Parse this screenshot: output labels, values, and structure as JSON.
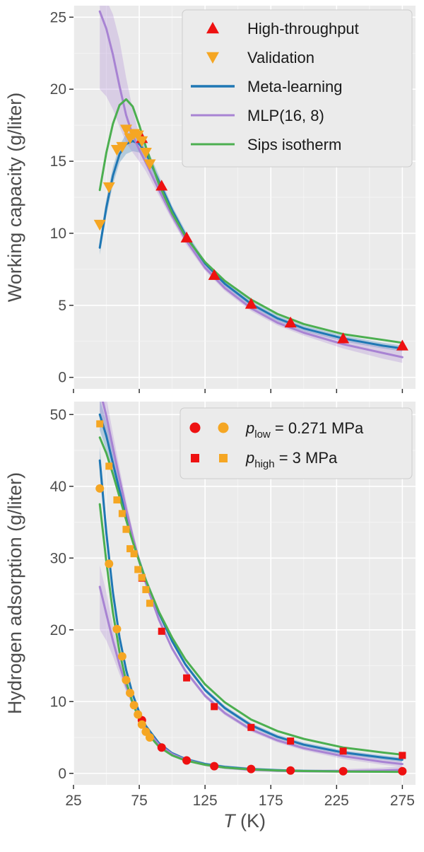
{
  "chart_data": [
    {
      "type": "line",
      "panel": "top",
      "title": "",
      "xlabel": "",
      "ylabel": "Working capacity (g/liter)",
      "xlim": [
        25,
        285
      ],
      "ylim": [
        -0.8,
        25.8
      ],
      "xticks": [
        25,
        75,
        125,
        175,
        225,
        275
      ],
      "yticks": [
        0,
        5,
        10,
        15,
        20,
        25
      ],
      "ytick_labels": [
        "0",
        "5",
        "10",
        "15",
        "20",
        "25"
      ],
      "grid": true,
      "legend_position": "top-right",
      "legend": [
        {
          "label": "High-throughput",
          "marker": "triangle-up",
          "color": "#ee1111"
        },
        {
          "label": "Validation",
          "marker": "triangle-down",
          "color": "#f5a623"
        },
        {
          "label": "Meta-learning",
          "marker": "line",
          "color": "#1f77b4"
        },
        {
          "label": "MLP(16, 8)",
          "marker": "line",
          "color": "#a883d3"
        },
        {
          "label": "Sips isotherm",
          "marker": "line",
          "color": "#4caf50"
        }
      ],
      "series": [
        {
          "name": "High-throughput",
          "kind": "scatter",
          "marker": "triangle-up",
          "color": "#ee1111",
          "x": [
            77,
            92,
            111,
            132,
            160,
            190,
            230,
            275
          ],
          "y": [
            16.6,
            13.3,
            9.7,
            7.1,
            5.1,
            3.8,
            2.7,
            2.2
          ]
        },
        {
          "name": "Validation",
          "kind": "scatter",
          "marker": "triangle-down",
          "color": "#f5a623",
          "x": [
            45,
            52,
            58,
            62,
            65,
            68,
            71,
            74,
            77,
            80,
            83
          ],
          "y": [
            10.6,
            13.2,
            15.8,
            16.0,
            17.2,
            16.6,
            16.9,
            16.8,
            16.4,
            15.6,
            14.8
          ]
        },
        {
          "name": "Meta-learning",
          "kind": "line",
          "color": "#1f77b4",
          "x": [
            45,
            50,
            55,
            60,
            65,
            70,
            75,
            80,
            90,
            100,
            110,
            125,
            140,
            160,
            180,
            200,
            230,
            260,
            275
          ],
          "y": [
            9.0,
            11.8,
            14.0,
            15.5,
            16.2,
            16.4,
            16.2,
            15.6,
            13.6,
            11.6,
            9.9,
            7.9,
            6.5,
            5.1,
            4.1,
            3.4,
            2.7,
            2.2,
            2.0
          ],
          "band_lower": [
            8.5,
            11.2,
            13.4,
            14.9,
            15.5,
            15.7,
            15.6,
            15.1,
            13.2,
            11.3,
            9.6,
            7.7,
            6.3,
            4.9,
            3.9,
            3.2,
            2.5,
            2.0,
            1.8
          ],
          "band_upper": [
            9.5,
            12.4,
            14.6,
            16.1,
            16.9,
            17.1,
            16.8,
            16.1,
            14.0,
            11.9,
            10.2,
            8.1,
            6.7,
            5.3,
            4.3,
            3.6,
            2.9,
            2.4,
            2.2
          ]
        },
        {
          "name": "MLP(16, 8)",
          "kind": "line",
          "color": "#a883d3",
          "x": [
            45,
            50,
            55,
            60,
            65,
            70,
            75,
            80,
            90,
            100,
            110,
            125,
            140,
            160,
            180,
            200,
            230,
            260,
            275
          ],
          "y": [
            25.4,
            24.2,
            22.4,
            20.2,
            18.2,
            16.8,
            15.8,
            14.9,
            13.0,
            11.2,
            9.6,
            7.6,
            6.2,
            4.8,
            3.8,
            3.1,
            2.3,
            1.7,
            1.4
          ],
          "band_lower": [
            20.0,
            19.5,
            18.6,
            17.4,
            16.3,
            15.6,
            15.0,
            14.3,
            12.6,
            10.9,
            9.3,
            7.4,
            6.0,
            4.6,
            3.6,
            2.9,
            2.0,
            1.3,
            1.0
          ],
          "band_upper": [
            26.8,
            26.2,
            25.2,
            23.4,
            20.8,
            18.6,
            16.8,
            15.6,
            13.4,
            11.5,
            9.9,
            7.8,
            6.4,
            5.0,
            4.0,
            3.3,
            2.6,
            2.1,
            1.9
          ]
        },
        {
          "name": "Sips isotherm",
          "kind": "line",
          "color": "#4caf50",
          "x": [
            45,
            50,
            55,
            60,
            65,
            70,
            75,
            80,
            90,
            100,
            110,
            125,
            140,
            160,
            180,
            200,
            230,
            260,
            275
          ],
          "y": [
            13.0,
            15.6,
            17.6,
            18.9,
            19.3,
            18.8,
            17.5,
            16.0,
            13.4,
            11.4,
            9.8,
            8.0,
            6.7,
            5.4,
            4.4,
            3.7,
            3.0,
            2.6,
            2.4
          ]
        }
      ]
    },
    {
      "type": "line",
      "panel": "bottom",
      "title": "",
      "xlabel": "T (K)",
      "xlabel_italic": "T",
      "xlabel_rest": " (K)",
      "ylabel": "Hydrogen adsorption (g/liter)",
      "xlim": [
        25,
        285
      ],
      "ylim": [
        -1.6,
        51.8
      ],
      "xticks": [
        25,
        75,
        125,
        175,
        225,
        275
      ],
      "xtick_labels": [
        "25",
        "75",
        "125",
        "175",
        "225",
        "275"
      ],
      "yticks": [
        0,
        10,
        20,
        30,
        40,
        50
      ],
      "ytick_labels": [
        "0",
        "10",
        "20",
        "30",
        "40",
        "50"
      ],
      "grid": true,
      "legend_position": "top-right",
      "legend": [
        {
          "symbol": "p",
          "sub": "low",
          "rest": " = 0.271 MPa",
          "marker": "circle",
          "colors": [
            "#ee1111",
            "#f5a623"
          ]
        },
        {
          "symbol": "p",
          "sub": "high",
          "rest": " = 3 MPa",
          "marker": "square",
          "colors": [
            "#ee1111",
            "#f5a623"
          ]
        }
      ],
      "series": [
        {
          "name": "p_low high-throughput",
          "kind": "scatter",
          "marker": "circle",
          "color": "#ee1111",
          "x": [
            77,
            92,
            111,
            132,
            160,
            190,
            230,
            275
          ],
          "y": [
            7.4,
            3.6,
            1.8,
            1.0,
            0.6,
            0.4,
            0.3,
            0.3
          ]
        },
        {
          "name": "p_low validation",
          "kind": "scatter",
          "marker": "circle",
          "color": "#f5a623",
          "x": [
            45,
            52,
            58,
            62,
            65,
            68,
            71,
            74,
            77,
            80,
            83
          ],
          "y": [
            39.7,
            29.2,
            20.1,
            16.3,
            13.0,
            11.2,
            9.5,
            8.2,
            6.8,
            5.8,
            5.0
          ]
        },
        {
          "name": "p_high high-throughput",
          "kind": "scatter",
          "marker": "square",
          "color": "#ee1111",
          "x": [
            77,
            92,
            111,
            132,
            160,
            190,
            230,
            275
          ],
          "y": [
            27.2,
            19.8,
            13.3,
            9.3,
            6.4,
            4.5,
            3.1,
            2.5
          ]
        },
        {
          "name": "p_high validation",
          "kind": "scatter",
          "marker": "square",
          "color": "#f5a623",
          "x": [
            45,
            52,
            58,
            62,
            65,
            68,
            71,
            74,
            77,
            80,
            83
          ],
          "y": [
            48.7,
            42.8,
            38.1,
            36.2,
            34.0,
            31.3,
            30.6,
            28.4,
            27.3,
            25.6,
            23.7
          ]
        },
        {
          "name": "Meta-learning p_high",
          "kind": "line",
          "color": "#1f77b4",
          "x": [
            45,
            50,
            55,
            60,
            65,
            70,
            75,
            80,
            90,
            100,
            110,
            125,
            140,
            160,
            180,
            200,
            230,
            260,
            275
          ],
          "y": [
            50.0,
            47.0,
            43.2,
            39.4,
            35.9,
            32.6,
            29.6,
            26.9,
            22.3,
            18.4,
            15.2,
            11.6,
            9.1,
            6.7,
            5.1,
            4.0,
            2.9,
            2.2,
            1.9
          ],
          "band_lower": [
            47.8,
            45.0,
            41.6,
            38.1,
            34.9,
            31.8,
            29.0,
            26.4,
            21.9,
            18.1,
            14.9,
            11.3,
            8.8,
            6.4,
            4.8,
            3.7,
            2.6,
            1.9,
            1.6
          ],
          "band_upper": [
            52.2,
            49.0,
            44.8,
            40.7,
            36.9,
            33.4,
            30.2,
            27.4,
            22.7,
            18.7,
            15.5,
            11.9,
            9.4,
            7.0,
            5.4,
            4.3,
            3.2,
            2.5,
            2.2
          ]
        },
        {
          "name": "Meta-learning p_low",
          "kind": "line",
          "color": "#1f77b4",
          "x": [
            45,
            50,
            55,
            60,
            65,
            70,
            75,
            80,
            90,
            100,
            110,
            125,
            140,
            160,
            180,
            200,
            230,
            260,
            275
          ],
          "y": [
            43.6,
            33.5,
            25.2,
            18.9,
            14.4,
            11.0,
            8.5,
            6.6,
            4.2,
            2.8,
            2.0,
            1.3,
            0.9,
            0.6,
            0.45,
            0.35,
            0.3,
            0.25,
            0.25
          ],
          "band_lower": [
            41.6,
            32.0,
            24.1,
            18.1,
            13.8,
            10.5,
            8.1,
            6.3,
            4.0,
            2.6,
            1.8,
            1.1,
            0.7,
            0.4,
            0.3,
            0.2,
            0.15,
            0.1,
            0.1
          ],
          "band_upper": [
            45.6,
            35.0,
            26.3,
            19.7,
            15.0,
            11.5,
            8.9,
            6.9,
            4.4,
            3.0,
            2.2,
            1.5,
            1.1,
            0.8,
            0.6,
            0.5,
            0.45,
            0.4,
            0.4
          ]
        },
        {
          "name": "MLP p_high",
          "kind": "line",
          "color": "#a883d3",
          "x": [
            45,
            50,
            55,
            60,
            65,
            70,
            75,
            80,
            90,
            100,
            110,
            125,
            140,
            160,
            180,
            200,
            230,
            260,
            275
          ],
          "y": [
            53.5,
            49.8,
            45.4,
            41.0,
            36.8,
            33.0,
            29.5,
            26.5,
            21.4,
            17.4,
            14.3,
            10.8,
            8.4,
            6.1,
            4.6,
            3.5,
            2.4,
            1.6,
            1.3
          ],
          "band_lower": [
            50.5,
            47.3,
            43.4,
            39.5,
            35.6,
            32.1,
            28.9,
            26.0,
            21.0,
            17.1,
            14.0,
            10.5,
            8.1,
            5.8,
            4.3,
            3.2,
            2.0,
            1.2,
            0.9
          ],
          "band_upper": [
            56.5,
            52.3,
            47.4,
            42.5,
            38.0,
            33.9,
            30.1,
            27.0,
            21.8,
            17.7,
            14.6,
            11.1,
            8.7,
            6.4,
            4.9,
            3.8,
            2.8,
            2.0,
            1.7
          ]
        },
        {
          "name": "MLP p_low",
          "kind": "line",
          "color": "#a883d3",
          "x": [
            45,
            50,
            55,
            60,
            65,
            70,
            75,
            80,
            90,
            100,
            110,
            125,
            140,
            160,
            180,
            200,
            230,
            260,
            275
          ],
          "y": [
            26.0,
            22.2,
            18.5,
            15.1,
            12.2,
            9.8,
            7.8,
            6.2,
            4.0,
            2.7,
            1.9,
            1.2,
            0.8,
            0.5,
            0.35,
            0.3,
            0.3,
            0.4,
            0.5
          ],
          "band_lower": [
            20.0,
            18.5,
            16.3,
            13.8,
            11.4,
            9.3,
            7.4,
            5.9,
            3.8,
            2.5,
            1.7,
            1.0,
            0.6,
            0.3,
            0.2,
            0.1,
            0.05,
            0.05,
            0.05
          ],
          "band_upper": [
            29.0,
            25.2,
            20.5,
            16.4,
            13.0,
            10.3,
            8.2,
            6.5,
            4.2,
            2.9,
            2.1,
            1.4,
            1.0,
            0.7,
            0.5,
            0.5,
            0.6,
            0.8,
            1.0
          ]
        },
        {
          "name": "Sips p_high",
          "kind": "line",
          "color": "#4caf50",
          "x": [
            45,
            50,
            55,
            60,
            65,
            70,
            75,
            80,
            90,
            100,
            110,
            125,
            140,
            160,
            180,
            200,
            230,
            260,
            275
          ],
          "y": [
            46.8,
            44.6,
            41.7,
            38.5,
            35.3,
            32.3,
            29.5,
            26.9,
            22.5,
            18.9,
            15.9,
            12.4,
            9.9,
            7.5,
            5.9,
            4.8,
            3.6,
            2.9,
            2.6
          ]
        },
        {
          "name": "Sips p_low",
          "kind": "line",
          "color": "#4caf50",
          "x": [
            45,
            50,
            55,
            60,
            65,
            70,
            75,
            80,
            90,
            100,
            110,
            125,
            140,
            160,
            180,
            200,
            230,
            260,
            275
          ],
          "y": [
            37.5,
            29.5,
            22.4,
            16.9,
            12.8,
            9.8,
            7.5,
            5.8,
            3.7,
            2.5,
            1.8,
            1.2,
            0.8,
            0.55,
            0.4,
            0.32,
            0.25,
            0.22,
            0.2
          ]
        }
      ]
    }
  ]
}
